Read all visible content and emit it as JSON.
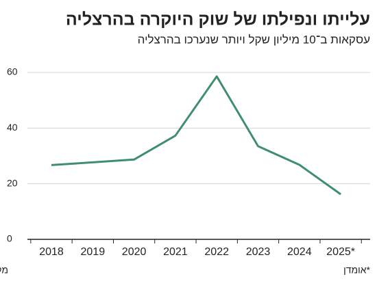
{
  "chart_data": {
    "type": "line",
    "title": "עלייתו ונפילתו של שוק היוקרה בהרצליה",
    "subtitle": "עסקאות ב־10 מיליון שקל ויותר שנערכו בהרצליה",
    "source": "מקור: רשות המסים",
    "note": "*אומדן",
    "categories": [
      "2018",
      "2019",
      "2020",
      "2021",
      "2022",
      "2023",
      "2024",
      "2025*"
    ],
    "series": [
      {
        "name": "עסקאות",
        "color": "#3f8f6e",
        "values": [
          26.7,
          27.7,
          28.7,
          37.3,
          58.6,
          33.5,
          26.8,
          16.2
        ]
      }
    ],
    "ylim": [
      0,
      60
    ],
    "yticks": [
      0,
      20,
      40,
      60
    ],
    "grid": true
  }
}
